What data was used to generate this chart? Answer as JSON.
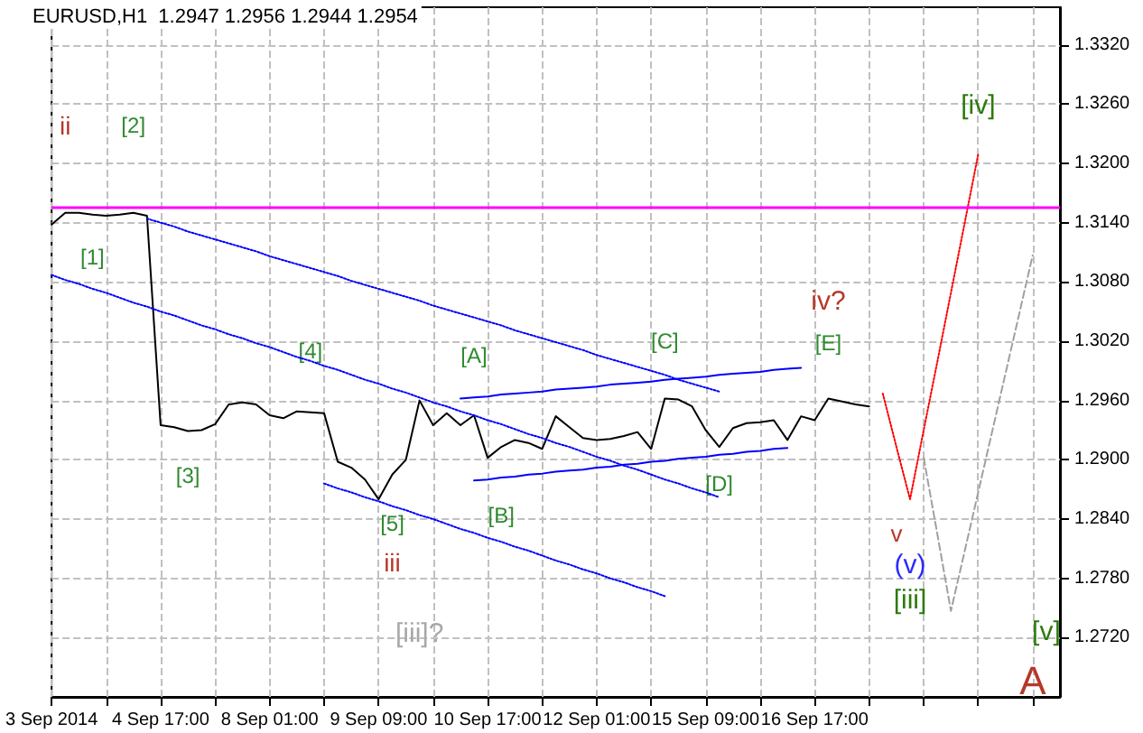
{
  "chart_data": {
    "type": "line",
    "title": "EURUSD,H1  1.2947 1.2956 1.2944 1.2954",
    "categories": [
      "3 Sep 2014",
      null,
      null,
      null,
      null,
      null,
      null,
      null,
      "4 Sep 17:00",
      null,
      null,
      null,
      null,
      null,
      null,
      null,
      "8 Sep 01:00",
      null,
      null,
      null,
      null,
      null,
      null,
      null,
      "9 Sep 09:00",
      null,
      null,
      null,
      null,
      null,
      null,
      null,
      "10 Sep 17:00",
      null,
      null,
      null,
      null,
      null,
      null,
      null,
      "12 Sep 01:00",
      null,
      null,
      null,
      null,
      null,
      null,
      null,
      "15 Sep 09:00",
      null,
      null,
      null,
      null,
      null,
      null,
      null,
      "16 Sep 17:00",
      null,
      null,
      null,
      null,
      null,
      null,
      null,
      null,
      null,
      null,
      null,
      null,
      null,
      null,
      null,
      null,
      null,
      null
    ],
    "ylim": [
      1.266,
      1.3358
    ],
    "yticks": [
      {
        "value": 1.272,
        "label": "1.2720"
      },
      {
        "value": 1.278,
        "label": "1.2780"
      },
      {
        "value": 1.284,
        "label": "1.2840"
      },
      {
        "value": 1.29,
        "label": "1.2900"
      },
      {
        "value": 1.296,
        "label": "1.2960"
      },
      {
        "value": 1.302,
        "label": "1.3020"
      },
      {
        "value": 1.308,
        "label": "1.3080"
      },
      {
        "value": 1.314,
        "label": "1.3140"
      },
      {
        "value": 1.32,
        "label": "1.3200"
      },
      {
        "value": 1.326,
        "label": "1.3260"
      },
      {
        "value": 1.332,
        "label": "1.3320"
      }
    ],
    "grid": true,
    "legend": false,
    "marker": "none",
    "series": [
      {
        "color": "#000000",
        "line_style": "solid",
        "values": [
          1.3138,
          1.315,
          1.315,
          1.3148,
          1.3147,
          1.3148,
          1.315,
          1.3147,
          1.2935,
          1.2933,
          1.2929,
          1.293,
          1.2936,
          1.2956,
          1.2958,
          1.2956,
          1.2945,
          1.2942,
          1.2949,
          1.2948,
          1.2947,
          1.2898,
          1.2892,
          1.288,
          1.286,
          1.2885,
          1.29,
          1.296,
          1.2935,
          1.2947,
          1.2935,
          1.2945,
          1.2902,
          1.2913,
          1.292,
          1.2917,
          1.2911,
          1.2944,
          1.2933,
          1.2922,
          1.292,
          1.2921,
          1.2924,
          1.2928,
          1.2911,
          1.2962,
          1.2961,
          1.2954,
          1.293,
          1.2913,
          1.2932,
          1.2937,
          1.2938,
          1.294,
          1.292,
          1.2944,
          1.294,
          1.2962,
          1.2959,
          1.2956,
          1.2954,
          null,
          null,
          null,
          null,
          null,
          null,
          null,
          null,
          null,
          null,
          null,
          null,
          null,
          null
        ]
      },
      {
        "color": "#0000ff",
        "line_style": "solid",
        "values": [
          null,
          null,
          null,
          null,
          null,
          null,
          null,
          null,
          null,
          null,
          null,
          null,
          null,
          null,
          null,
          null,
          null,
          null,
          null,
          null,
          null,
          null,
          null,
          null,
          null,
          null,
          null,
          null,
          null,
          null,
          1.2962,
          1.2963,
          1.2964,
          1.2966,
          1.2967,
          1.2968,
          1.2969,
          1.2971,
          1.2972,
          1.2973,
          1.2974,
          1.2976,
          1.2977,
          1.2978,
          1.2979,
          1.2981,
          1.2982,
          1.2983,
          1.2984,
          1.2986,
          1.2987,
          1.2988,
          1.2989,
          1.2991,
          1.2992,
          1.2993,
          null,
          null,
          null,
          null,
          null,
          null,
          null,
          null,
          null,
          null,
          null,
          null,
          null,
          null,
          null,
          null,
          null,
          null,
          null
        ]
      },
      {
        "color": "#0000ff",
        "line_style": "solid",
        "values": [
          null,
          null,
          null,
          null,
          null,
          null,
          null,
          null,
          null,
          null,
          null,
          null,
          null,
          null,
          null,
          null,
          null,
          null,
          null,
          null,
          null,
          null,
          null,
          null,
          null,
          null,
          null,
          null,
          null,
          null,
          null,
          1.2879,
          1.288,
          1.2882,
          1.2883,
          1.2885,
          1.2886,
          1.2888,
          1.2889,
          1.289,
          1.2892,
          1.2893,
          1.2895,
          1.2896,
          1.2898,
          1.2899,
          1.2901,
          1.2902,
          1.2903,
          1.2905,
          1.2906,
          1.2908,
          1.2909,
          1.2911,
          1.2912,
          null,
          null,
          null,
          null,
          null,
          null,
          null,
          null,
          null,
          null,
          null,
          null,
          null,
          null,
          null,
          null,
          null,
          null,
          null,
          null
        ]
      },
      {
        "color": "#0000ff",
        "line_style": "dotted",
        "values": [
          null,
          null,
          null,
          null,
          null,
          null,
          null,
          1.3144,
          1.314,
          1.3136,
          1.3131,
          1.3127,
          1.3123,
          1.3119,
          1.3115,
          1.3111,
          1.3106,
          1.3102,
          1.3098,
          1.3094,
          1.309,
          1.3086,
          1.3081,
          1.3077,
          1.3073,
          1.3069,
          1.3065,
          1.3061,
          1.3056,
          1.3052,
          1.3048,
          1.3044,
          1.304,
          1.3036,
          1.3031,
          1.3027,
          1.3023,
          1.3019,
          1.3015,
          1.3011,
          1.3006,
          1.3002,
          1.2998,
          1.2994,
          1.299,
          1.2986,
          1.2981,
          1.2977,
          1.2973,
          1.2969,
          null,
          null,
          null,
          null,
          null,
          null,
          null,
          null,
          null,
          null,
          null,
          null,
          null,
          null,
          null,
          null,
          null,
          null,
          null,
          null,
          null,
          null,
          null,
          null,
          null
        ]
      },
      {
        "color": "#0000ff",
        "line_style": "dotted",
        "values": [
          1.3087,
          1.3082,
          1.3078,
          1.3073,
          1.3069,
          1.3064,
          1.3059,
          1.3055,
          1.305,
          1.3046,
          1.3041,
          1.3036,
          1.3032,
          1.3027,
          1.3023,
          1.3018,
          1.3014,
          1.3009,
          1.3004,
          1.3,
          1.2995,
          1.2991,
          1.2986,
          1.2981,
          1.2977,
          1.2972,
          1.2968,
          1.2963,
          1.2958,
          1.2954,
          1.2949,
          1.2945,
          1.294,
          1.2936,
          1.2931,
          1.2926,
          1.2922,
          1.2917,
          1.2913,
          1.2908,
          1.2903,
          1.2899,
          1.2894,
          1.289,
          1.2885,
          1.288,
          1.2876,
          1.2871,
          1.2867,
          1.2862,
          null,
          null,
          null,
          null,
          null,
          null,
          null,
          null,
          null,
          null,
          null,
          null,
          null,
          null,
          null,
          null,
          null,
          null,
          null,
          null,
          null,
          null,
          null,
          null,
          null
        ]
      },
      {
        "color": "#0000ff",
        "line_style": "dotted",
        "values": [
          null,
          null,
          null,
          null,
          null,
          null,
          null,
          null,
          null,
          null,
          null,
          null,
          null,
          null,
          null,
          null,
          null,
          null,
          null,
          null,
          1.2876,
          1.2871,
          1.2867,
          1.2862,
          1.2858,
          1.2853,
          1.2849,
          1.2844,
          1.284,
          1.2835,
          1.283,
          1.2826,
          1.2821,
          1.2817,
          1.2812,
          1.2808,
          1.2803,
          1.2798,
          1.2794,
          1.2789,
          1.2785,
          1.278,
          1.2776,
          1.2771,
          1.2767,
          1.2762,
          null,
          null,
          null,
          null,
          null,
          null,
          null,
          null,
          null,
          null,
          null,
          null,
          null,
          null,
          null,
          null,
          null,
          null,
          null,
          null,
          null,
          null,
          null,
          null,
          null,
          null,
          null,
          null,
          null
        ]
      },
      {
        "color": "#ff0000",
        "line_style": "dotted",
        "values": [
          null,
          null,
          null,
          null,
          null,
          null,
          null,
          null,
          null,
          null,
          null,
          null,
          null,
          null,
          null,
          null,
          null,
          null,
          null,
          null,
          null,
          null,
          null,
          null,
          null,
          null,
          null,
          null,
          null,
          null,
          null,
          null,
          null,
          null,
          null,
          null,
          null,
          null,
          null,
          null,
          null,
          null,
          null,
          null,
          null,
          null,
          null,
          null,
          null,
          null,
          null,
          null,
          null,
          null,
          null,
          null,
          null,
          null,
          null,
          null,
          null,
          1.2967,
          1.2913,
          1.286,
          1.293,
          1.2999,
          1.3069,
          1.3139,
          1.3209,
          null,
          null,
          null,
          null,
          null,
          null
        ]
      },
      {
        "color": "#a0a0a0",
        "line_style": "dashed",
        "values": [
          null,
          null,
          null,
          null,
          null,
          null,
          null,
          null,
          null,
          null,
          null,
          null,
          null,
          null,
          null,
          null,
          null,
          null,
          null,
          null,
          null,
          null,
          null,
          null,
          null,
          null,
          null,
          null,
          null,
          null,
          null,
          null,
          null,
          null,
          null,
          null,
          null,
          null,
          null,
          null,
          null,
          null,
          null,
          null,
          null,
          null,
          null,
          null,
          null,
          null,
          null,
          null,
          null,
          null,
          null,
          null,
          null,
          null,
          null,
          null,
          null,
          null,
          null,
          null,
          1.2902,
          1.2825,
          1.2747,
          1.2807,
          1.2867,
          1.2927,
          1.2987,
          1.3047,
          1.3107,
          null,
          null
        ]
      }
    ],
    "ref_lines": [
      {
        "axis": "y",
        "value": 1.3156,
        "color": "#ff00ff",
        "line_style": "solid"
      }
    ],
    "annotations": [
      "ii",
      "[2]",
      "[1]",
      "[3]",
      "[4]",
      "[5]",
      "iii",
      "[iii]?",
      "[A]",
      "[B]",
      "[C]",
      "[D]",
      "[E]",
      "iv?",
      "v",
      "(v)",
      "[iii]",
      "[iv]",
      "[v]",
      "A"
    ]
  }
}
